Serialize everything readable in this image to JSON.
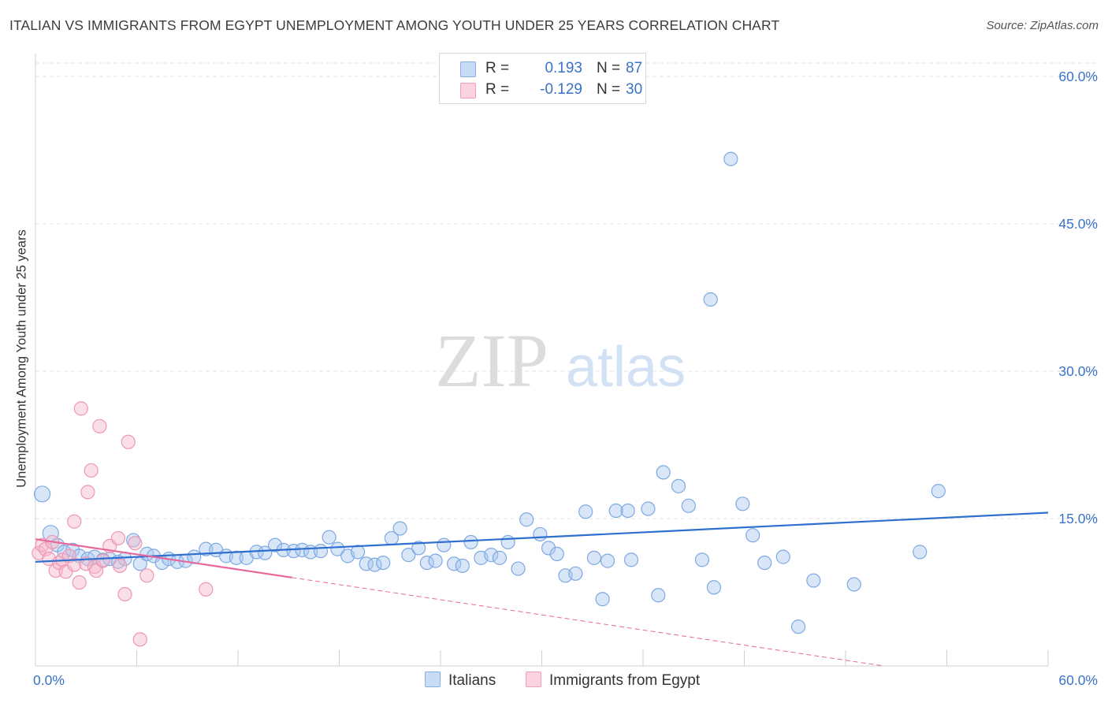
{
  "header": {
    "title": "ITALIAN VS IMMIGRANTS FROM EGYPT UNEMPLOYMENT AMONG YOUTH UNDER 25 YEARS CORRELATION CHART",
    "source": "Source: ZipAtlas.com"
  },
  "watermark": {
    "zip": "ZIP",
    "atlas": "atlas"
  },
  "legend": {
    "italians": {
      "r_label": "R =",
      "r_value": "0.193",
      "n_label": "N =",
      "n_value": "87",
      "color": "#a8c8f0"
    },
    "egypt": {
      "r_label": "R =",
      "r_value": "-0.129",
      "n_label": "N =",
      "n_value": "30",
      "color": "#f6b8cb"
    }
  },
  "bottom_legend": {
    "italians": "Italians",
    "egypt": "Immigrants from Egypt"
  },
  "chart_data": {
    "type": "scatter",
    "title": "ITALIAN VS IMMIGRANTS FROM EGYPT UNEMPLOYMENT AMONG YOUTH UNDER 25 YEARS CORRELATION CHART",
    "xlabel": "",
    "ylabel": "Unemployment Among Youth under 25 years",
    "xlim": [
      0,
      60
    ],
    "ylim": [
      0,
      60
    ],
    "x_tick_labels": [
      "0.0%",
      "60.0%"
    ],
    "y_ticks": [
      15,
      30,
      45,
      60
    ],
    "y_tick_labels": [
      "15.0%",
      "30.0%",
      "45.0%",
      "60.0%"
    ],
    "grid": true,
    "legend_position": "top-center",
    "series": [
      {
        "name": "Italians",
        "color": "#a8c8f0",
        "trend_color": "#2f6fd0",
        "trend": {
          "x0": 0,
          "y0": 10.6,
          "x1": 60,
          "y1": 15.6,
          "solid_to": 60
        },
        "points": [
          [
            0.4,
            17.5
          ],
          [
            0.9,
            13.5
          ],
          [
            1.3,
            12.3
          ],
          [
            1.7,
            11.6
          ],
          [
            2.2,
            11.8
          ],
          [
            2.6,
            11.2
          ],
          [
            3.1,
            10.9
          ],
          [
            3.5,
            11.1
          ],
          [
            4.0,
            10.8
          ],
          [
            4.4,
            10.9
          ],
          [
            4.9,
            10.6
          ],
          [
            5.3,
            10.9
          ],
          [
            5.8,
            12.8
          ],
          [
            6.2,
            10.4
          ],
          [
            6.6,
            11.4
          ],
          [
            7.0,
            11.2
          ],
          [
            7.5,
            10.5
          ],
          [
            7.9,
            10.9
          ],
          [
            8.4,
            10.6
          ],
          [
            8.9,
            10.7
          ],
          [
            9.4,
            11.1
          ],
          [
            10.1,
            11.9
          ],
          [
            10.7,
            11.8
          ],
          [
            11.3,
            11.2
          ],
          [
            11.9,
            11.0
          ],
          [
            12.5,
            11.0
          ],
          [
            13.1,
            11.6
          ],
          [
            13.6,
            11.5
          ],
          [
            14.2,
            12.3
          ],
          [
            14.7,
            11.8
          ],
          [
            15.3,
            11.7
          ],
          [
            15.8,
            11.8
          ],
          [
            16.3,
            11.6
          ],
          [
            16.9,
            11.7
          ],
          [
            17.4,
            13.1
          ],
          [
            17.9,
            11.9
          ],
          [
            18.5,
            11.2
          ],
          [
            19.1,
            11.6
          ],
          [
            19.6,
            10.4
          ],
          [
            20.1,
            10.3
          ],
          [
            20.6,
            10.5
          ],
          [
            21.1,
            13.0
          ],
          [
            21.6,
            14.0
          ],
          [
            22.1,
            11.3
          ],
          [
            22.7,
            12.0
          ],
          [
            23.2,
            10.5
          ],
          [
            23.7,
            10.7
          ],
          [
            24.2,
            12.3
          ],
          [
            24.8,
            10.4
          ],
          [
            25.3,
            10.2
          ],
          [
            25.8,
            12.6
          ],
          [
            26.4,
            11.0
          ],
          [
            27.0,
            11.3
          ],
          [
            27.5,
            11.0
          ],
          [
            28.0,
            12.6
          ],
          [
            28.6,
            9.9
          ],
          [
            29.1,
            14.9
          ],
          [
            29.9,
            13.4
          ],
          [
            30.4,
            12.0
          ],
          [
            30.9,
            11.4
          ],
          [
            31.4,
            9.2
          ],
          [
            32.0,
            9.4
          ],
          [
            32.6,
            15.7
          ],
          [
            33.1,
            11.0
          ],
          [
            33.6,
            6.8
          ],
          [
            33.9,
            10.7
          ],
          [
            34.4,
            15.8
          ],
          [
            35.1,
            15.8
          ],
          [
            35.3,
            10.8
          ],
          [
            36.3,
            16.0
          ],
          [
            36.9,
            7.2
          ],
          [
            37.2,
            19.7
          ],
          [
            38.1,
            18.3
          ],
          [
            38.7,
            16.3
          ],
          [
            39.5,
            10.8
          ],
          [
            40.0,
            37.3
          ],
          [
            40.2,
            8.0
          ],
          [
            41.2,
            51.6
          ],
          [
            41.9,
            16.5
          ],
          [
            42.5,
            13.3
          ],
          [
            43.2,
            10.5
          ],
          [
            44.3,
            11.1
          ],
          [
            45.2,
            4.0
          ],
          [
            46.1,
            8.7
          ],
          [
            48.5,
            8.3
          ],
          [
            52.4,
            11.6
          ],
          [
            53.5,
            17.8
          ]
        ]
      },
      {
        "name": "Immigrants from Egypt",
        "color": "#f6b8cb",
        "trend_color": "#e8679a",
        "trend": {
          "x0": 0,
          "y0": 12.9,
          "x1": 60,
          "y1": -2.5,
          "solid_to": 15.2
        },
        "points": [
          [
            0.2,
            11.5
          ],
          [
            0.4,
            12.3
          ],
          [
            0.6,
            11.9
          ],
          [
            0.8,
            10.9
          ],
          [
            1.0,
            12.6
          ],
          [
            1.2,
            9.7
          ],
          [
            1.4,
            10.5
          ],
          [
            1.6,
            10.8
          ],
          [
            1.8,
            9.6
          ],
          [
            2.0,
            11.2
          ],
          [
            2.3,
            10.3
          ],
          [
            2.3,
            14.7
          ],
          [
            2.6,
            8.5
          ],
          [
            2.7,
            26.2
          ],
          [
            3.0,
            10.4
          ],
          [
            3.1,
            17.7
          ],
          [
            3.3,
            19.9
          ],
          [
            3.5,
            10.1
          ],
          [
            3.6,
            9.7
          ],
          [
            3.8,
            24.4
          ],
          [
            4.0,
            10.7
          ],
          [
            4.4,
            12.2
          ],
          [
            4.9,
            13.0
          ],
          [
            5.0,
            10.2
          ],
          [
            5.3,
            7.3
          ],
          [
            5.5,
            22.8
          ],
          [
            5.9,
            12.5
          ],
          [
            6.2,
            2.7
          ],
          [
            6.6,
            9.2
          ],
          [
            10.1,
            7.8
          ]
        ]
      }
    ]
  }
}
